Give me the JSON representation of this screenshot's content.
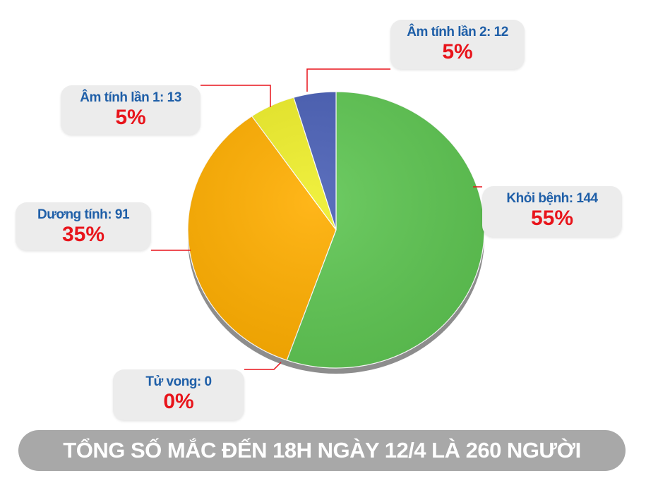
{
  "chart_data": {
    "type": "pie",
    "total_title": "TỔNG SỐ MẮC ĐẾN 18H NGÀY 12/4 LÀ 260 NGƯỜI",
    "slices": [
      {
        "key": "khoi",
        "label": "Khỏi bệnh: 144",
        "value": 144,
        "percent": "55%",
        "color": "#5fc653"
      },
      {
        "key": "tu",
        "label": "Tử vong: 0",
        "value": 0,
        "percent": "0%",
        "color": "#9a9a9a"
      },
      {
        "key": "duong",
        "label": "Dương tính: 91",
        "value": 91,
        "percent": "35%",
        "color": "#ffae00"
      },
      {
        "key": "am1",
        "label": "Âm tính lần 1: 13",
        "value": 13,
        "percent": "5%",
        "color": "#eeee2a"
      },
      {
        "key": "am2",
        "label": "Âm tính lần 2: 12",
        "value": 12,
        "percent": "5%",
        "color": "#4a60b6"
      }
    ],
    "accent_color": "#e8141b",
    "label_text_color": "#1f5fa8"
  }
}
